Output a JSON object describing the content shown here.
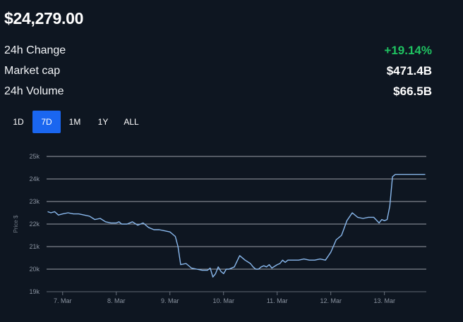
{
  "price": "$24,279.00",
  "stats": [
    {
      "label": "24h Change",
      "value": "+19.14%",
      "positive": true
    },
    {
      "label": "Market cap",
      "value": "$471.4B",
      "positive": false
    },
    {
      "label": "24h Volume",
      "value": "$66.5B",
      "positive": false
    }
  ],
  "ranges": [
    "1D",
    "7D",
    "1M",
    "1Y",
    "ALL"
  ],
  "active_range": "7D",
  "colors": {
    "line": "#8ab9ee",
    "positive": "#1fc261",
    "accent": "#1a66f0"
  },
  "chart_data": {
    "type": "line",
    "ylabel": "Price $",
    "y_ticks": [
      "19k",
      "20k",
      "21k",
      "22k",
      "23k",
      "24k",
      "25k"
    ],
    "y_tick_values": [
      19000,
      20000,
      21000,
      22000,
      23000,
      24000,
      25000
    ],
    "ylim": [
      19000,
      25000
    ],
    "x_ticks": [
      "7. Mar",
      "8. Mar",
      "9. Mar",
      "10. Mar",
      "11. Mar",
      "12. Mar",
      "13. Mar"
    ],
    "x_tick_values": [
      7,
      8,
      9,
      10,
      11,
      12,
      13
    ],
    "xlim": [
      6.7,
      13.78
    ],
    "grid": true,
    "series": [
      {
        "x": [
          6.72,
          6.78,
          6.85,
          6.92,
          7.0,
          7.1,
          7.2,
          7.3,
          7.4,
          7.5,
          7.6,
          7.7,
          7.8,
          7.9,
          8.0,
          8.05,
          8.1,
          8.2,
          8.3,
          8.4,
          8.5,
          8.6,
          8.7,
          8.8,
          8.9,
          9.0,
          9.05,
          9.1,
          9.15,
          9.2,
          9.3,
          9.4,
          9.5,
          9.6,
          9.7,
          9.75,
          9.8,
          9.85,
          9.9,
          9.95,
          10.0,
          10.05,
          10.1,
          10.2,
          10.3,
          10.4,
          10.5,
          10.55,
          10.6,
          10.65,
          10.7,
          10.75,
          10.8,
          10.85,
          10.9,
          11.0,
          11.05,
          11.1,
          11.15,
          11.2,
          11.3,
          11.4,
          11.5,
          11.6,
          11.7,
          11.8,
          11.9,
          12.0,
          12.1,
          12.2,
          12.3,
          12.4,
          12.5,
          12.6,
          12.7,
          12.8,
          12.9,
          12.95,
          13.0,
          13.05,
          13.1,
          13.15,
          13.2,
          13.3,
          13.4,
          13.45,
          13.5,
          13.55,
          13.6,
          13.65,
          13.7,
          13.73,
          13.76
        ],
        "y": [
          22550,
          22500,
          22550,
          22400,
          22450,
          22500,
          22450,
          22450,
          22400,
          22350,
          22200,
          22250,
          22100,
          22050,
          22050,
          22100,
          22000,
          22000,
          22100,
          21950,
          22050,
          21850,
          21750,
          21750,
          21700,
          21650,
          21550,
          21450,
          21000,
          20200,
          20250,
          20050,
          20000,
          19950,
          19950,
          20050,
          19650,
          19800,
          20100,
          19900,
          19800,
          20000,
          20000,
          20100,
          20600,
          20400,
          20250,
          20100,
          20000,
          20000,
          20100,
          20150,
          20100,
          20200,
          20050,
          20200,
          20250,
          20400,
          20300,
          20400,
          20400,
          20400,
          20450,
          20400,
          20400,
          20450,
          20400,
          20750,
          21300,
          21500,
          22150,
          22500,
          22300,
          22250,
          22300,
          22300,
          22050,
          22200,
          22150,
          22200,
          22800,
          24100,
          24200,
          24200,
          24200,
          24200,
          24200,
          24200,
          24200,
          24200,
          24200,
          24200,
          24200
        ]
      }
    ]
  }
}
